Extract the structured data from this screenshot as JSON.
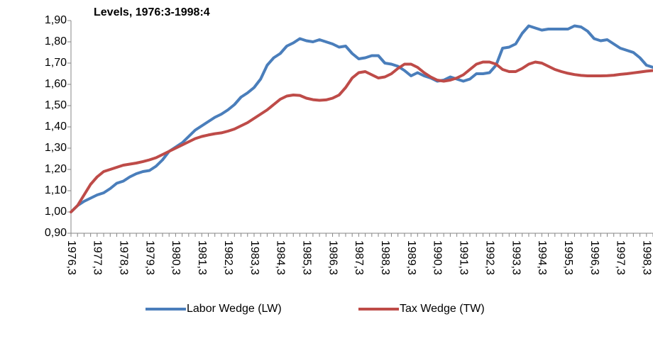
{
  "chart_data": {
    "type": "line",
    "title": "Levels, 1976:3-1998:4",
    "categories": [
      "1976,3",
      null,
      null,
      null,
      "1977,3",
      null,
      null,
      null,
      "1978,3",
      null,
      null,
      null,
      "1979,3",
      null,
      null,
      null,
      "1980,3",
      null,
      null,
      null,
      "1981,3",
      null,
      null,
      null,
      "1982,3",
      null,
      null,
      null,
      "1983,3",
      null,
      null,
      null,
      "1984,3",
      null,
      null,
      null,
      "1985,3",
      null,
      null,
      null,
      "1986,3",
      null,
      null,
      null,
      "1987,3",
      null,
      null,
      null,
      "1988,3",
      null,
      null,
      null,
      "1989,3",
      null,
      null,
      null,
      "1990,3",
      null,
      null,
      null,
      "1991,3",
      null,
      null,
      null,
      "1992,3",
      null,
      null,
      null,
      "1993,3",
      null,
      null,
      null,
      "1994,3",
      null,
      null,
      null,
      "1995,3",
      null,
      null,
      null,
      "1996,3",
      null,
      null,
      null,
      "1997,3",
      null,
      null,
      null,
      "1998,3",
      null
    ],
    "series": [
      {
        "name": "Labor Wedge (LW)",
        "color": "#4a7ebb",
        "values": [
          1.0,
          1.03,
          1.05,
          1.065,
          1.08,
          1.09,
          1.11,
          1.135,
          1.145,
          1.165,
          1.18,
          1.19,
          1.195,
          1.215,
          1.245,
          1.285,
          1.305,
          1.325,
          1.355,
          1.385,
          1.405,
          1.425,
          1.445,
          1.46,
          1.48,
          1.505,
          1.54,
          1.56,
          1.585,
          1.625,
          1.69,
          1.725,
          1.745,
          1.78,
          1.795,
          1.815,
          1.805,
          1.8,
          1.81,
          1.8,
          1.79,
          1.775,
          1.78,
          1.745,
          1.72,
          1.725,
          1.735,
          1.735,
          1.7,
          1.695,
          1.685,
          1.665,
          1.64,
          1.655,
          1.64,
          1.63,
          1.615,
          1.62,
          1.635,
          1.625,
          1.615,
          1.625,
          1.65,
          1.65,
          1.655,
          1.69,
          1.77,
          1.775,
          1.79,
          1.84,
          1.875,
          1.865,
          1.855,
          1.86,
          1.86,
          1.86,
          1.86,
          1.875,
          1.87,
          1.85,
          1.815,
          1.805,
          1.81,
          1.79,
          1.77,
          1.76,
          1.75,
          1.725,
          1.69,
          1.68
        ]
      },
      {
        "name": "Tax Wedge (TW)",
        "color": "#be4b48",
        "values": [
          1.0,
          1.03,
          1.08,
          1.13,
          1.165,
          1.19,
          1.2,
          1.21,
          1.22,
          1.225,
          1.23,
          1.237,
          1.245,
          1.255,
          1.27,
          1.285,
          1.3,
          1.315,
          1.33,
          1.345,
          1.355,
          1.362,
          1.368,
          1.372,
          1.38,
          1.39,
          1.405,
          1.42,
          1.44,
          1.46,
          1.48,
          1.505,
          1.53,
          1.545,
          1.55,
          1.548,
          1.535,
          1.528,
          1.525,
          1.527,
          1.535,
          1.55,
          1.585,
          1.63,
          1.655,
          1.66,
          1.645,
          1.63,
          1.635,
          1.65,
          1.675,
          1.695,
          1.695,
          1.68,
          1.655,
          1.635,
          1.62,
          1.615,
          1.62,
          1.63,
          1.645,
          1.67,
          1.695,
          1.705,
          1.705,
          1.695,
          1.67,
          1.66,
          1.66,
          1.675,
          1.695,
          1.705,
          1.7,
          1.685,
          1.67,
          1.66,
          1.652,
          1.646,
          1.642,
          1.64,
          1.64,
          1.64,
          1.641,
          1.643,
          1.647,
          1.65,
          1.654,
          1.658,
          1.662,
          1.665
        ]
      }
    ],
    "ylim": [
      0.9,
      1.9
    ],
    "yticks": [
      {
        "value": 0.9,
        "label": "0,90"
      },
      {
        "value": 1.0,
        "label": "1,00"
      },
      {
        "value": 1.1,
        "label": "1,10"
      },
      {
        "value": 1.2,
        "label": "1,20"
      },
      {
        "value": 1.3,
        "label": "1,30"
      },
      {
        "value": 1.4,
        "label": "1,40"
      },
      {
        "value": 1.5,
        "label": "1,50"
      },
      {
        "value": 1.6,
        "label": "1,60"
      },
      {
        "value": 1.7,
        "label": "1,70"
      },
      {
        "value": 1.8,
        "label": "1,80"
      },
      {
        "value": 1.9,
        "label": "1,90"
      }
    ],
    "grid": false,
    "legend": "bottom"
  }
}
